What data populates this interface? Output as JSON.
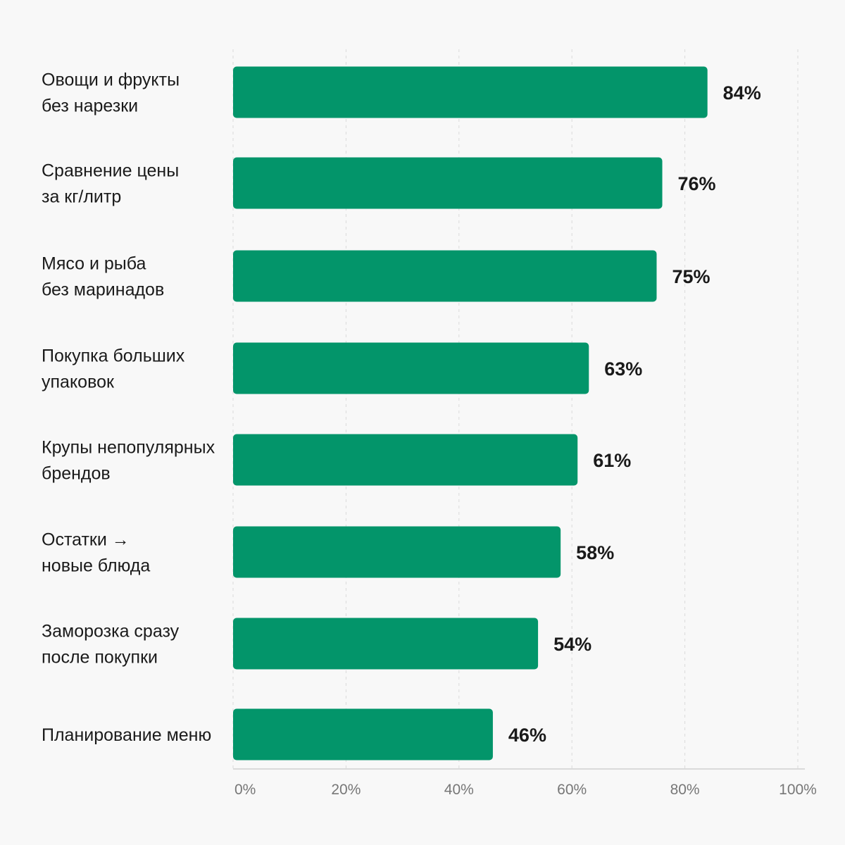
{
  "chart_data": {
    "type": "bar",
    "orientation": "horizontal",
    "categories": [
      [
        "Овощи и фрукты",
        "без нарезки"
      ],
      [
        "Сравнение цены",
        "за кг/литр"
      ],
      [
        "Мясо и рыба",
        "без маринадов"
      ],
      [
        "Покупка больших",
        "упаковок"
      ],
      [
        "Крупы непопулярных",
        "брендов"
      ],
      [
        "Остатки →",
        "новые блюда"
      ],
      [
        "Заморозка сразу",
        "после покупки"
      ],
      [
        "Планирование меню"
      ]
    ],
    "values": [
      84,
      76,
      75,
      63,
      61,
      58,
      54,
      46
    ],
    "value_labels": [
      "84%",
      "76%",
      "75%",
      "63%",
      "61%",
      "58%",
      "54%",
      "46%"
    ],
    "xlim": [
      0,
      100
    ],
    "x_ticks": [
      0,
      20,
      40,
      60,
      80,
      100
    ],
    "x_tick_labels": [
      "0%",
      "20%",
      "40%",
      "60%",
      "80%",
      "100%"
    ],
    "title": "",
    "xlabel": "",
    "ylabel": "",
    "grid": true,
    "legend": "none",
    "bar_color": "#03956a"
  }
}
